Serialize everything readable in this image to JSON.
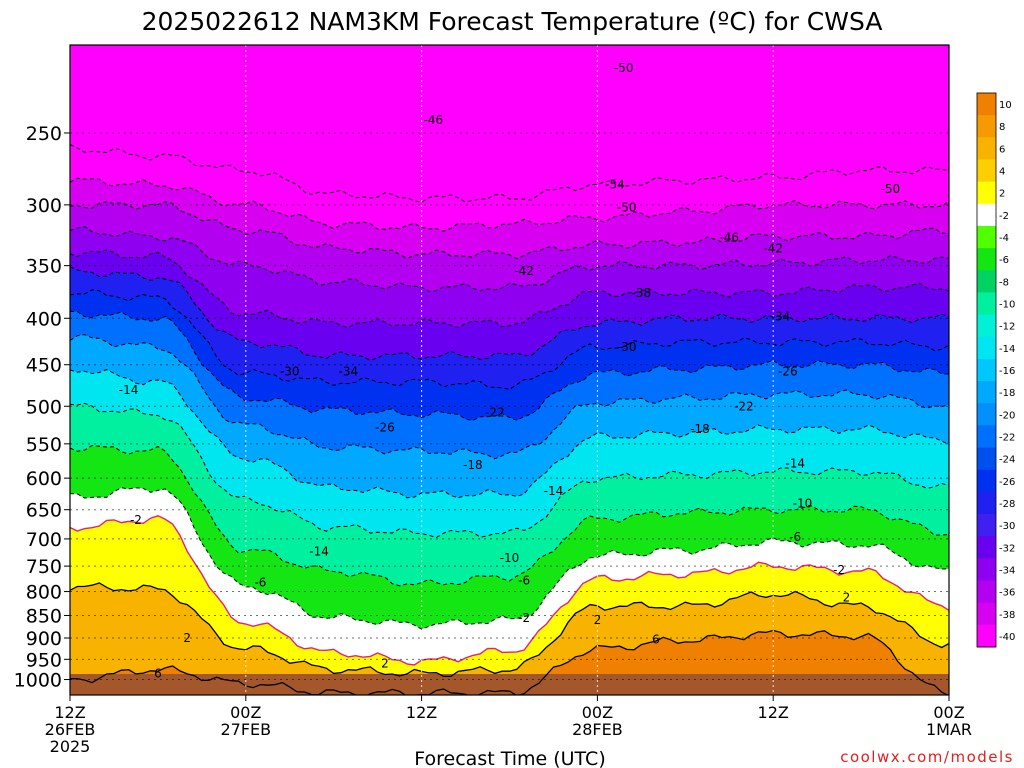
{
  "chart_data": {
    "type": "heatmap",
    "title": "2025022612 NAM3KM Forecast Temperature (ºC) for CWSA",
    "xlabel": "Forecast Time (UTC)",
    "ylabel": "",
    "watermark": "coolwx.com/models",
    "x_ticks": [
      {
        "hour": 0,
        "lines": [
          "12Z",
          "26FEB",
          "2025"
        ]
      },
      {
        "hour": 12,
        "lines": [
          "00Z",
          "27FEB"
        ]
      },
      {
        "hour": 24,
        "lines": [
          "12Z"
        ]
      },
      {
        "hour": 36,
        "lines": [
          "00Z",
          "28FEB"
        ]
      },
      {
        "hour": 48,
        "lines": [
          "12Z"
        ]
      },
      {
        "hour": 60,
        "lines": [
          "00Z",
          "1MAR"
        ]
      }
    ],
    "x_range_hours": [
      0,
      60
    ],
    "y_ticks": [
      250,
      300,
      350,
      400,
      450,
      500,
      550,
      600,
      650,
      700,
      750,
      800,
      850,
      900,
      950,
      1000
    ],
    "y_range_hpa": [
      200,
      1040
    ],
    "y_scale": "log",
    "grid": true,
    "colorbar": {
      "labels": [
        "10",
        "8",
        "6",
        "4",
        "2",
        "-2",
        "-4",
        "-6",
        "-8",
        "-10",
        "-12",
        "-14",
        "-16",
        "-18",
        "-20",
        "-22",
        "-24",
        "-26",
        "-28",
        "-30",
        "-32",
        "-34",
        "-36",
        "-38",
        "-40"
      ],
      "colors": [
        "#f08000",
        "#f59a00",
        "#f8b300",
        "#fbcf00",
        "#ffff00",
        "#ffffff",
        "#50ff00",
        "#14e614",
        "#00d264",
        "#00f0a0",
        "#00f0d8",
        "#00e6f0",
        "#00c8ff",
        "#00a8ff",
        "#0090ff",
        "#0070ff",
        "#0050f0",
        "#0030f0",
        "#2020f0",
        "#4020f0",
        "#6a00f0",
        "#9000f0",
        "#b400f0",
        "#d800f0",
        "#ff00ff"
      ]
    },
    "ground_color": "#a5572c",
    "pink_line_color": "#e0207a",
    "anchor_hours": [
      0,
      6,
      12,
      18,
      24,
      30,
      36,
      42,
      48,
      54,
      60
    ],
    "isotherm_heights_hpa": [
      {
        "t": 6,
        "p": [
          1000,
          975,
          1010,
          1035,
          1035,
          1035,
          925,
          905,
          890,
          895,
          1035
        ]
      },
      {
        "t": 2,
        "p": [
          790,
          795,
          925,
          975,
          985,
          975,
          830,
          830,
          805,
          830,
          915
        ]
      },
      {
        "t": 0,
        "p": [
          680,
          665,
          865,
          935,
          955,
          930,
          775,
          765,
          750,
          760,
          830
        ]
      },
      {
        "t": -2,
        "p": [
          630,
          615,
          790,
          855,
          870,
          860,
          730,
          720,
          705,
          710,
          760
        ]
      },
      {
        "t": -6,
        "p": [
          555,
          560,
          720,
          760,
          785,
          770,
          665,
          655,
          650,
          650,
          690
        ]
      },
      {
        "t": -10,
        "p": [
          500,
          510,
          635,
          680,
          690,
          690,
          600,
          595,
          590,
          590,
          615
        ]
      },
      {
        "t": -14,
        "p": [
          455,
          470,
          570,
          615,
          625,
          625,
          540,
          535,
          530,
          530,
          545
        ]
      },
      {
        "t": -18,
        "p": [
          420,
          430,
          525,
          555,
          560,
          565,
          495,
          490,
          485,
          485,
          500
        ]
      },
      {
        "t": -22,
        "p": [
          395,
          400,
          490,
          505,
          510,
          515,
          460,
          455,
          450,
          450,
          460
        ]
      },
      {
        "t": -26,
        "p": [
          375,
          380,
          460,
          470,
          470,
          475,
          430,
          425,
          425,
          425,
          430
        ]
      },
      {
        "t": -30,
        "p": [
          355,
          360,
          425,
          440,
          440,
          440,
          405,
          400,
          400,
          400,
          400
        ]
      },
      {
        "t": -34,
        "p": [
          338,
          342,
          395,
          405,
          405,
          405,
          375,
          375,
          375,
          370,
          370
        ]
      },
      {
        "t": -38,
        "p": [
          320,
          325,
          350,
          365,
          370,
          370,
          350,
          350,
          348,
          345,
          345
        ]
      },
      {
        "t": -42,
        "p": [
          300,
          300,
          320,
          335,
          340,
          340,
          332,
          330,
          325,
          325,
          320
        ]
      },
      {
        "t": -46,
        "p": [
          282,
          285,
          300,
          315,
          318,
          315,
          310,
          305,
          300,
          300,
          300
        ]
      },
      {
        "t": -50,
        "p": [
          260,
          265,
          275,
          292,
          295,
          295,
          285,
          282,
          280,
          275,
          275
        ]
      }
    ],
    "contour_labels": [
      {
        "text": "-50",
        "hour": 37.8,
        "p": 212
      },
      {
        "text": "-46",
        "hour": 24.8,
        "p": 242
      },
      {
        "text": "-54",
        "hour": 37.2,
        "p": 285
      },
      {
        "text": "-50",
        "hour": 38.0,
        "p": 302
      },
      {
        "text": "-50",
        "hour": 56.0,
        "p": 288
      },
      {
        "text": "-46",
        "hour": 45.0,
        "p": 326
      },
      {
        "text": "-42",
        "hour": 48.0,
        "p": 335
      },
      {
        "text": "-42",
        "hour": 31.0,
        "p": 355
      },
      {
        "text": "-38",
        "hour": 39.0,
        "p": 375
      },
      {
        "text": "-34",
        "hour": 48.5,
        "p": 398
      },
      {
        "text": "-30",
        "hour": 38.0,
        "p": 430
      },
      {
        "text": "-30",
        "hour": 15.0,
        "p": 458
      },
      {
        "text": "-34",
        "hour": 19.0,
        "p": 458
      },
      {
        "text": "-26",
        "hour": 49.0,
        "p": 458
      },
      {
        "text": "-14",
        "hour": 4.0,
        "p": 480
      },
      {
        "text": "-22",
        "hour": 29.0,
        "p": 508
      },
      {
        "text": "-22",
        "hour": 46.0,
        "p": 500
      },
      {
        "text": "-26",
        "hour": 21.5,
        "p": 528
      },
      {
        "text": "-18",
        "hour": 43.0,
        "p": 530
      },
      {
        "text": "-18",
        "hour": 27.5,
        "p": 580
      },
      {
        "text": "-14",
        "hour": 49.5,
        "p": 578
      },
      {
        "text": "-14",
        "hour": 33.0,
        "p": 620
      },
      {
        "text": "-10",
        "hour": 50.0,
        "p": 640
      },
      {
        "text": "-6",
        "hour": 49.5,
        "p": 697
      },
      {
        "text": "-2",
        "hour": 4.5,
        "p": 667
      },
      {
        "text": "-14",
        "hour": 17.0,
        "p": 723
      },
      {
        "text": "-10",
        "hour": 30.0,
        "p": 735
      },
      {
        "text": "-2",
        "hour": 52.5,
        "p": 757
      },
      {
        "text": "-6",
        "hour": 13.0,
        "p": 782
      },
      {
        "text": "-6",
        "hour": 31.0,
        "p": 778
      },
      {
        "text": "2",
        "hour": 53.0,
        "p": 812
      },
      {
        "text": "-2",
        "hour": 31.0,
        "p": 855
      },
      {
        "text": "2",
        "hour": 36.0,
        "p": 860
      },
      {
        "text": "2",
        "hour": 8.0,
        "p": 900
      },
      {
        "text": "6",
        "hour": 40.0,
        "p": 903
      },
      {
        "text": "2",
        "hour": 21.5,
        "p": 960
      },
      {
        "text": "6",
        "hour": 6.0,
        "p": 985
      }
    ]
  }
}
